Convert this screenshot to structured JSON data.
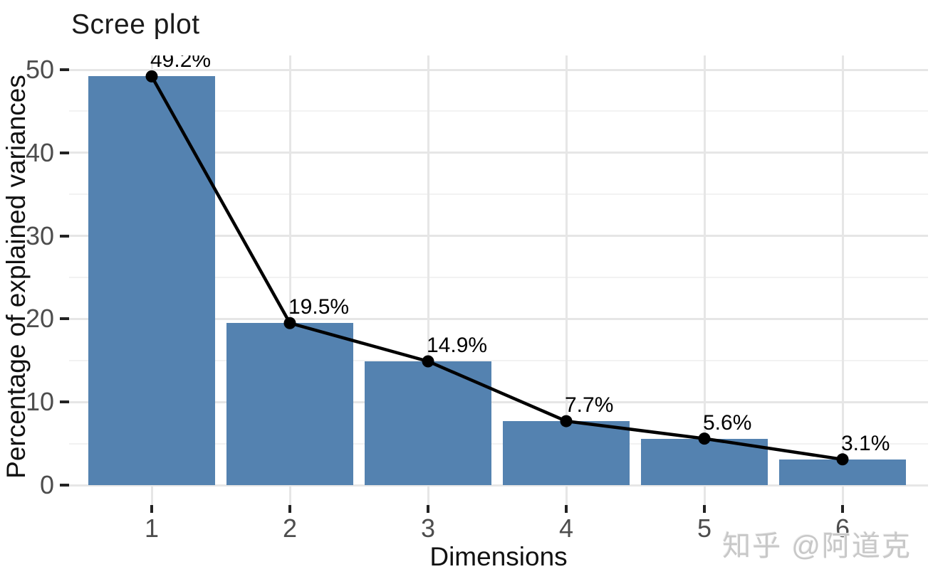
{
  "chart_data": {
    "type": "bar",
    "overlay": "line-with-points",
    "title": "Scree plot",
    "xlabel": "Dimensions",
    "ylabel": "Percentage of explained variances",
    "categories": [
      "1",
      "2",
      "3",
      "4",
      "5",
      "6"
    ],
    "values": [
      49.2,
      19.5,
      14.9,
      7.7,
      5.6,
      3.1
    ],
    "point_labels": [
      "49.2%",
      "19.5%",
      "14.9%",
      "7.7%",
      "5.6%",
      "3.1%"
    ],
    "ylim": [
      0,
      52
    ],
    "yticks": [
      0,
      10,
      20,
      30,
      40,
      50
    ],
    "yticks_minor": [
      5,
      15,
      25,
      35,
      45
    ],
    "grid": "major and minor horizontal, major vertical at each category",
    "legend": "none",
    "colors": {
      "bar": "#5482b0",
      "line": "#000000",
      "point": "#000000",
      "grid_major": "#e6e6e6",
      "grid_minor": "#f2f2f2",
      "tick_label": "#4d4d4d",
      "text": "#111111"
    }
  },
  "watermark": {
    "text": "知乎 @阿道克",
    "color": "#c8c8c8"
  }
}
